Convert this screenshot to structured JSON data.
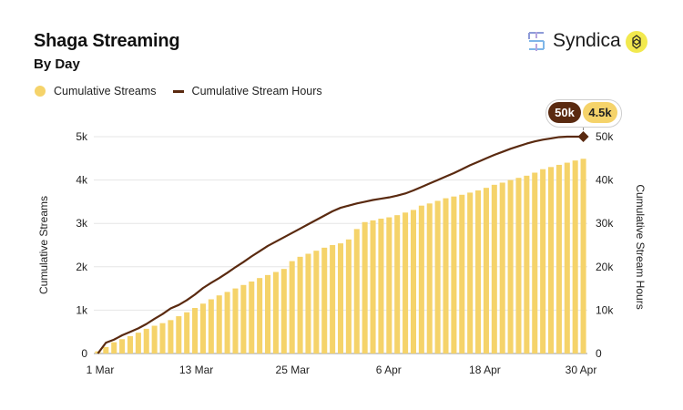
{
  "title": "Shaga Streaming",
  "subtitle": "By Day",
  "brand": {
    "name": "Syndica"
  },
  "legend": {
    "streams": "Cumulative Streams",
    "hours": "Cumulative Stream Hours"
  },
  "colors": {
    "bars": "#f5d36a",
    "line": "#5a2a10",
    "grid": "#e6e6e6"
  },
  "callout": {
    "hours_label": "50k",
    "streams_label": "4.5k"
  },
  "chart_data": {
    "type": "bar+line",
    "x_ticks": [
      "1 Mar",
      "13 Mar",
      "25 Mar",
      "6 Apr",
      "18 Apr",
      "30 Apr"
    ],
    "y_left": {
      "label": "Cumulative Streams",
      "range": [
        0,
        5000
      ],
      "ticks": [
        "0",
        "1k",
        "2k",
        "3k",
        "4k",
        "5k"
      ]
    },
    "y_right": {
      "label": "Cumulative Stream Hours",
      "range": [
        0,
        50000
      ],
      "ticks": [
        "0",
        "10k",
        "20k",
        "30k",
        "40k",
        "50k"
      ]
    },
    "series": [
      {
        "name": "Cumulative Streams",
        "kind": "bar",
        "axis": "left",
        "values": [
          50,
          150,
          260,
          330,
          400,
          480,
          570,
          640,
          700,
          770,
          860,
          950,
          1050,
          1150,
          1250,
          1340,
          1420,
          1500,
          1580,
          1660,
          1740,
          1810,
          1880,
          1950,
          2130,
          2230,
          2300,
          2370,
          2440,
          2500,
          2540,
          2630,
          2870,
          3030,
          3070,
          3110,
          3140,
          3190,
          3250,
          3310,
          3410,
          3460,
          3520,
          3580,
          3620,
          3660,
          3710,
          3760,
          3820,
          3890,
          3940,
          4000,
          4050,
          4100,
          4170,
          4250,
          4300,
          4350,
          4400,
          4450,
          4490
        ]
      },
      {
        "name": "Cumulative Stream Hours",
        "kind": "line",
        "axis": "right",
        "values": [
          0,
          2500,
          3200,
          4200,
          5000,
          5800,
          6800,
          8000,
          9100,
          10400,
          11200,
          12300,
          13600,
          15100,
          16300,
          17400,
          18600,
          19900,
          21100,
          22400,
          23600,
          24800,
          25800,
          26800,
          27800,
          28800,
          29800,
          30800,
          31800,
          32800,
          33600,
          34100,
          34600,
          35000,
          35400,
          35700,
          36000,
          36400,
          36900,
          37600,
          38400,
          39200,
          40000,
          40800,
          41600,
          42500,
          43400,
          44200,
          45000,
          45800,
          46500,
          47200,
          47800,
          48400,
          48900,
          49300,
          49600,
          49900,
          50000,
          50000,
          50000
        ]
      }
    ],
    "grid": true,
    "legend_position": "top-left"
  }
}
